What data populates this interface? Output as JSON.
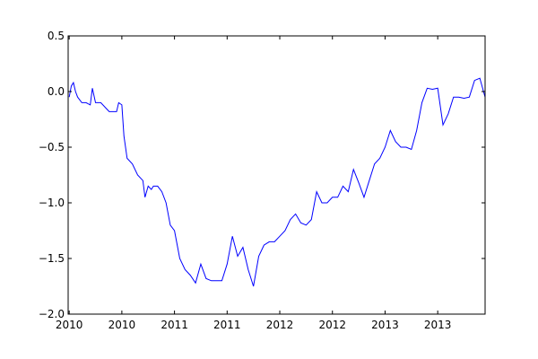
{
  "chart_data": {
    "type": "line",
    "title": "",
    "xlabel": "",
    "ylabel": "",
    "ylim": [
      -2.0,
      0.5
    ],
    "xlim": [
      2009.99,
      2013.95
    ],
    "grid": false,
    "legend": "none",
    "line_color": "#0000ff",
    "y_ticks": [
      {
        "value": 0.5,
        "label": "0.5"
      },
      {
        "value": 0.0,
        "label": "0.0"
      },
      {
        "value": -0.5,
        "label": "−0.5"
      },
      {
        "value": -1.0,
        "label": "−1.0"
      },
      {
        "value": -1.5,
        "label": "−1.5"
      },
      {
        "value": -2.0,
        "label": "−2.0"
      }
    ],
    "x_ticks": [
      {
        "value": 2010.0,
        "label": "2010"
      },
      {
        "value": 2010.5,
        "label": "2010"
      },
      {
        "value": 2011.0,
        "label": "2011"
      },
      {
        "value": 2011.5,
        "label": "2011"
      },
      {
        "value": 2012.0,
        "label": "2012"
      },
      {
        "value": 2012.5,
        "label": "2012"
      },
      {
        "value": 2013.0,
        "label": "2013"
      },
      {
        "value": 2013.5,
        "label": "2013"
      }
    ],
    "series": [
      {
        "x": [
          2010.0,
          2010.02,
          2010.04,
          2010.06,
          2010.08,
          2010.12,
          2010.16,
          2010.2,
          2010.22,
          2010.25,
          2010.3,
          2010.38,
          2010.45,
          2010.47,
          2010.5,
          2010.52,
          2010.55,
          2010.6,
          2010.65,
          2010.7,
          2010.72,
          2010.75,
          2010.78,
          2010.8,
          2010.84,
          2010.88,
          2010.92,
          2010.96,
          2011.0,
          2011.02,
          2011.05,
          2011.1,
          2011.15,
          2011.2,
          2011.25,
          2011.3,
          2011.35,
          2011.4,
          2011.45,
          2011.5,
          2011.52,
          2011.55,
          2011.6,
          2011.65,
          2011.7,
          2011.75,
          2011.8,
          2011.85,
          2011.9,
          2011.95,
          2012.0,
          2012.05,
          2012.1,
          2012.15,
          2012.2,
          2012.25,
          2012.3,
          2012.35,
          2012.4,
          2012.45,
          2012.5,
          2012.55,
          2012.6,
          2012.65,
          2012.7,
          2012.75,
          2012.8,
          2012.85,
          2012.9,
          2012.95,
          2013.0,
          2013.05,
          2013.1,
          2013.15,
          2013.2,
          2013.25,
          2013.3,
          2013.35,
          2013.4,
          2013.45,
          2013.5,
          2013.55,
          2013.6,
          2013.65,
          2013.7,
          2013.75,
          2013.8,
          2013.85,
          2013.9,
          2013.95
        ],
        "y": [
          -0.05,
          0.05,
          0.08,
          0.0,
          -0.05,
          -0.1,
          -0.1,
          -0.12,
          0.03,
          -0.1,
          -0.1,
          -0.18,
          -0.18,
          -0.1,
          -0.12,
          -0.4,
          -0.6,
          -0.65,
          -0.75,
          -0.8,
          -0.95,
          -0.85,
          -0.88,
          -0.85,
          -0.85,
          -0.9,
          -1.0,
          -1.2,
          -1.25,
          -1.35,
          -1.5,
          -1.6,
          -1.65,
          -1.72,
          -1.55,
          -1.68,
          -1.7,
          -1.7,
          -1.7,
          -1.55,
          -1.45,
          -1.3,
          -1.48,
          -1.4,
          -1.6,
          -1.75,
          -1.48,
          -1.38,
          -1.35,
          -1.35,
          -1.3,
          -1.25,
          -1.15,
          -1.1,
          -1.18,
          -1.2,
          -1.15,
          -0.9,
          -1.0,
          -1.0,
          -0.95,
          -0.95,
          -0.85,
          -0.9,
          -0.7,
          -0.82,
          -0.95,
          -0.8,
          -0.65,
          -0.6,
          -0.5,
          -0.35,
          -0.45,
          -0.5,
          -0.5,
          -0.52,
          -0.35,
          -0.1,
          0.03,
          0.02,
          0.03,
          -0.3,
          -0.2,
          -0.05,
          -0.05,
          -0.06,
          -0.05,
          0.1,
          0.12,
          -0.05
        ]
      }
    ]
  }
}
